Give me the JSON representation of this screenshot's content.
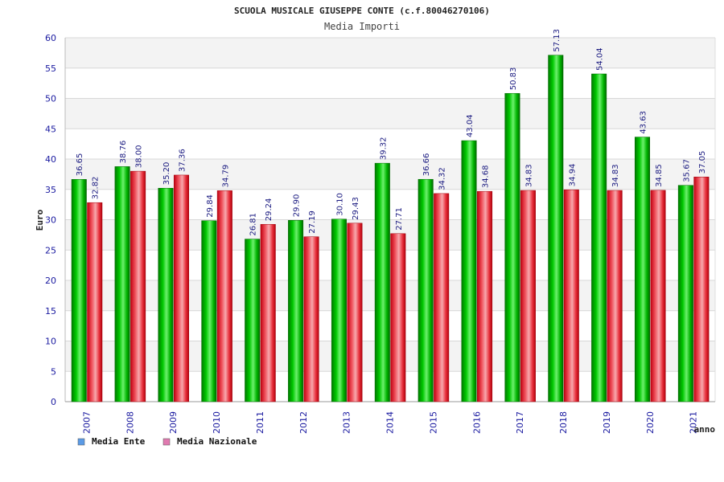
{
  "chart_data": {
    "type": "bar",
    "title": "SCUOLA MUSICALE GIUSEPPE CONTE (c.f.80046270106)",
    "subtitle": "Media Importi",
    "xlabel": "anno",
    "ylabel": "Euro",
    "ylim": [
      0,
      60
    ],
    "yticks": [
      0,
      5,
      10,
      15,
      20,
      25,
      30,
      35,
      40,
      45,
      50,
      55,
      60
    ],
    "categories": [
      "2007",
      "2008",
      "2009",
      "2010",
      "2011",
      "2012",
      "2013",
      "2014",
      "2015",
      "2016",
      "2017",
      "2018",
      "2019",
      "2020",
      "2021"
    ],
    "series": [
      {
        "name": "Media Ente",
        "color": "#00c000",
        "legend_color": "#5b9be6",
        "values": [
          36.65,
          38.76,
          35.2,
          29.84,
          26.81,
          29.9,
          30.1,
          39.32,
          36.66,
          43.04,
          50.83,
          57.13,
          54.04,
          43.63,
          35.67
        ],
        "labels": [
          "36.65",
          "38.76",
          "35.20",
          "29.84",
          "26.81",
          "29.90",
          "30.10",
          "39.32",
          "36.66",
          "43.04",
          "50.83",
          "57.13",
          "54.04",
          "43.63",
          "35.67"
        ]
      },
      {
        "name": "Media Nazionale",
        "color": "#e0202a",
        "legend_color": "#e07ab0",
        "values": [
          32.82,
          38.0,
          37.36,
          34.79,
          29.24,
          27.19,
          29.43,
          27.71,
          34.32,
          34.68,
          34.83,
          34.94,
          34.83,
          34.85,
          37.05
        ],
        "labels": [
          "32.82",
          "38.00",
          "37.36",
          "34.79",
          "29.24",
          "27.19",
          "29.43",
          "27.71",
          "34.32",
          "34.68",
          "34.83",
          "34.94",
          "34.83",
          "34.85",
          "37.05"
        ]
      }
    ],
    "grid": true,
    "legend_position": "bottom-left"
  }
}
